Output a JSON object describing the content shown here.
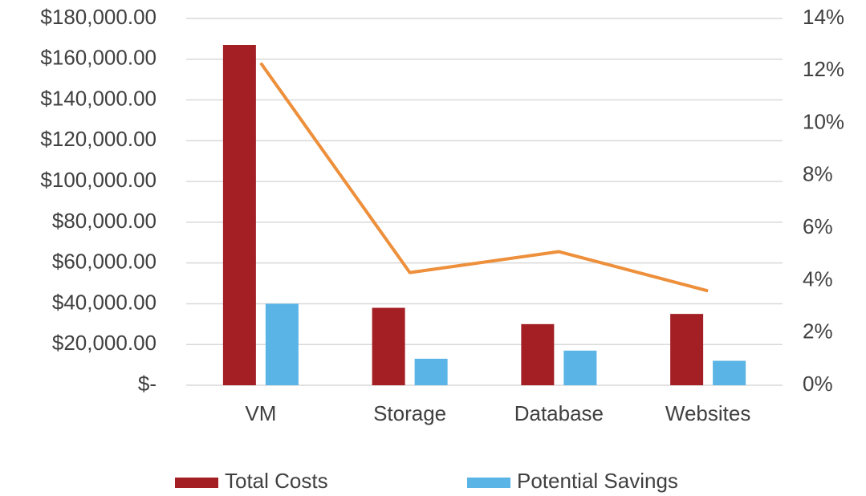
{
  "chart_data": {
    "type": "bar",
    "categories": [
      "VM",
      "Storage",
      "Database",
      "Websites"
    ],
    "series": [
      {
        "name": "Total Costs",
        "color": "#a31f24",
        "values": [
          167000,
          38000,
          30000,
          35000
        ]
      },
      {
        "name": "Potential Savings",
        "color": "#5ab4e6",
        "values": [
          40000,
          13000,
          17000,
          12000
        ]
      },
      {
        "type": "line",
        "axis": "y2",
        "color": "#ed8f3b",
        "values": [
          12.3,
          4.3,
          5.1,
          3.6
        ]
      }
    ],
    "ylim": [
      0,
      180000
    ],
    "yticks": [
      {
        "value": 0,
        "label": "$-"
      },
      {
        "value": 20000,
        "label": "$20,000.00"
      },
      {
        "value": 40000,
        "label": "$40,000.00"
      },
      {
        "value": 60000,
        "label": "$60,000.00"
      },
      {
        "value": 80000,
        "label": "$80,000.00"
      },
      {
        "value": 100000,
        "label": "$100,000.00"
      },
      {
        "value": 120000,
        "label": "$120,000.00"
      },
      {
        "value": 140000,
        "label": "$140,000.00"
      },
      {
        "value": 160000,
        "label": "$160,000.00"
      },
      {
        "value": 180000,
        "label": "$180,000.00"
      }
    ],
    "y2lim": [
      0,
      14
    ],
    "y2ticks": [
      {
        "value": 0,
        "label": "0%"
      },
      {
        "value": 2,
        "label": "2%"
      },
      {
        "value": 4,
        "label": "4%"
      },
      {
        "value": 6,
        "label": "6%"
      },
      {
        "value": 8,
        "label": "8%"
      },
      {
        "value": 10,
        "label": "10%"
      },
      {
        "value": 12,
        "label": "12%"
      },
      {
        "value": 14,
        "label": "14%"
      }
    ],
    "grid": true,
    "legend": "bottom"
  }
}
